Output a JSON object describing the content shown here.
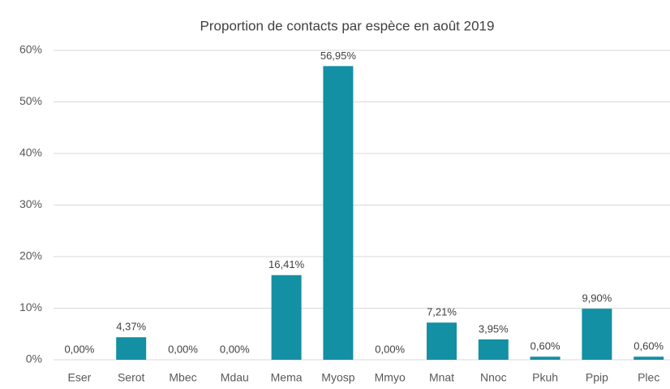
{
  "chart_data": {
    "type": "bar",
    "title": "Proportion de contacts par espèce en août 2019",
    "categories": [
      "Eser",
      "Serot",
      "Mbec",
      "Mdau",
      "Mema",
      "Myosp",
      "Mmyo",
      "Mnat",
      "Nnoc",
      "Pkuh",
      "Ppip",
      "Plec"
    ],
    "values": [
      0,
      4.37,
      0,
      0,
      16.41,
      56.95,
      0,
      7.21,
      3.95,
      0.6,
      9.9,
      0.6
    ],
    "value_labels": [
      "0,00%",
      "4,37%",
      "0,00%",
      "0,00%",
      "16,41%",
      "56,95%",
      "0,00%",
      "7,21%",
      "3,95%",
      "0,60%",
      "9,90%",
      "0,60%"
    ],
    "color": "#1390a3",
    "ylim": [
      0,
      60
    ],
    "yticks": [
      {
        "value": 0,
        "label": "0%"
      },
      {
        "value": 10,
        "label": "10%"
      },
      {
        "value": 20,
        "label": "20%"
      },
      {
        "value": 30,
        "label": "30%"
      },
      {
        "value": 40,
        "label": "40%"
      },
      {
        "value": 50,
        "label": "50%"
      },
      {
        "value": 60,
        "label": "60%"
      }
    ],
    "grid": true
  }
}
